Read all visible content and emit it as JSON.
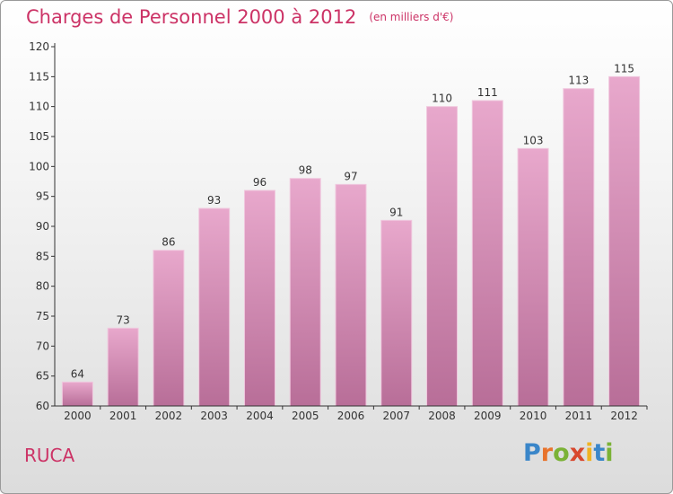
{
  "header": {
    "title": "Charges de Personnel 2000 à 2012",
    "subtitle": "(en milliers d'€)"
  },
  "footer": {
    "town": "RUCA",
    "logo_text": "Proxiti"
  },
  "colors": {
    "title": "#cc3366",
    "bar_top": "#e8a8cc",
    "bar_bottom": "#b86e98",
    "axis": "#333333"
  },
  "chart_data": {
    "type": "bar",
    "title": "Charges de Personnel 2000 à 2012",
    "subtitle": "(en milliers d'€)",
    "categories": [
      "2000",
      "2001",
      "2002",
      "2003",
      "2004",
      "2005",
      "2006",
      "2007",
      "2008",
      "2009",
      "2010",
      "2011",
      "2012"
    ],
    "values": [
      64,
      73,
      86,
      93,
      96,
      98,
      97,
      91,
      110,
      111,
      103,
      113,
      115
    ],
    "ylim": [
      60,
      120
    ],
    "yticks": [
      60,
      65,
      70,
      75,
      80,
      85,
      90,
      95,
      100,
      105,
      110,
      115,
      120
    ],
    "grid": false,
    "legend": "none"
  }
}
